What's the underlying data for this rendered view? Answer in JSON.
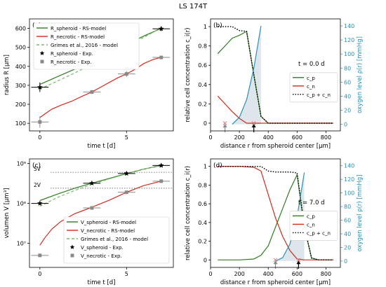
{
  "figure": {
    "title": "LS 174T"
  },
  "colors": {
    "green": "#2f7d1e",
    "green_dash": "#7ab86a",
    "red": "#d42a1a",
    "black": "#000000",
    "gray": "#8a8a8a",
    "teal": "#2a8fb5",
    "fill": "#cfdde3",
    "teal_axis": "#2a8fb5",
    "cross": "#d77a7a"
  },
  "chart_data": [
    {
      "panel": "(a)",
      "type": "line",
      "xlabel": "time t [d]",
      "ylabel": "radius R [μm]",
      "xlim": [
        -0.6,
        7.7
      ],
      "ylim": [
        60,
        650
      ],
      "xticks": [
        0,
        5
      ],
      "yticks": [
        100,
        200,
        300,
        400,
        500,
        600
      ],
      "legend": {
        "position": "top-left",
        "entries": [
          "R_spheroid - RS-model",
          "R_necrotic - RS-model",
          "Grimes et al., 2016 - model",
          "R_spheroid - Exp.",
          "R_necrotic - Exp."
        ]
      },
      "series": [
        {
          "name": "R_spheroid - RS-model",
          "color": "green",
          "style": "solid",
          "x": [
            0,
            1,
            2,
            3,
            4,
            5,
            6,
            7
          ],
          "y": [
            305,
            345,
            385,
            425,
            470,
            515,
            560,
            600
          ]
        },
        {
          "name": "R_necrotic - RS-model",
          "color": "red",
          "style": "solid",
          "x": [
            0,
            0.3,
            0.7,
            1.2,
            1.8,
            2.5,
            3,
            3.5,
            4,
            4.5,
            5,
            5.5,
            6,
            6.5,
            7
          ],
          "y": [
            130,
            150,
            175,
            195,
            215,
            245,
            265,
            290,
            315,
            340,
            360,
            385,
            415,
            435,
            448
          ]
        },
        {
          "name": "Grimes et al., 2016 - model",
          "color": "green_dash",
          "style": "dashed",
          "x": [
            0,
            1,
            2,
            3,
            4,
            5,
            6,
            7
          ],
          "y": [
            280,
            322,
            365,
            410,
            458,
            505,
            553,
            602
          ]
        }
      ],
      "points": [
        {
          "name": "R_spheroid - Exp.",
          "marker": "star",
          "color": "black",
          "x": [
            0,
            3,
            5,
            7
          ],
          "y": [
            290,
            425,
            515,
            598
          ],
          "xerr": [
            0.5,
            0.5,
            0.5,
            0.5
          ],
          "yerr": [
            25,
            10,
            15,
            12
          ]
        },
        {
          "name": "R_necrotic - Exp.",
          "marker": "square",
          "color": "gray",
          "x": [
            0,
            3,
            5,
            7
          ],
          "y": [
            107,
            265,
            360,
            447
          ],
          "xerr": [
            0.5,
            0.5,
            0.5,
            0.5
          ],
          "yerr": [
            30,
            10,
            15,
            8
          ]
        }
      ]
    },
    {
      "panel": "(b)",
      "type": "line",
      "xlabel": "distance r from spheroid center [μm]",
      "ylabel": "relative cell concentration c_i(r)",
      "y2label": "oxygen level ρ(r) [mmHg]",
      "xlim": [
        0,
        900
      ],
      "ylim": [
        -0.08,
        1.08
      ],
      "y2lim": [
        -9.3333,
        150
      ],
      "xticks": [
        0,
        200,
        400,
        600,
        800
      ],
      "yticks": [
        0.0,
        0.2,
        0.4,
        0.6,
        0.8,
        1.0
      ],
      "y2ticks": [
        0,
        20,
        40,
        60,
        80,
        100,
        120,
        140
      ],
      "annotation": "t = 0.0 d",
      "legend": {
        "position": "center-right",
        "entries": [
          "c_p",
          "c_n",
          "c_p + c_n"
        ]
      },
      "series": [
        {
          "name": "c_p",
          "color": "green",
          "style": "solid",
          "x": [
            50,
            100,
            150,
            200,
            250,
            300,
            350,
            400,
            450,
            850
          ],
          "y": [
            0.72,
            0.8,
            0.88,
            0.91,
            0.95,
            0.5,
            0.07,
            0,
            0,
            0
          ]
        },
        {
          "name": "c_n",
          "color": "red",
          "style": "solid",
          "x": [
            50,
            100,
            150,
            200,
            250,
            850
          ],
          "y": [
            0.28,
            0.2,
            0.12,
            0.05,
            0,
            0
          ]
        },
        {
          "name": "c_p + c_n",
          "color": "black",
          "style": "dotted",
          "x": [
            50,
            100,
            150,
            200,
            250,
            300,
            350,
            400,
            450,
            850
          ],
          "y": [
            1.0,
            1.0,
            1.0,
            0.96,
            0.95,
            0.5,
            0.07,
            0,
            0,
            0
          ]
        },
        {
          "name": "oxygen",
          "color": "teal",
          "style": "solid",
          "axis": "right",
          "x": [
            150,
            200,
            250,
            300,
            350
          ],
          "y": [
            0,
            10,
            35,
            80,
            140
          ]
        }
      ],
      "arrows": [
        {
          "x": 100,
          "color": "gray",
          "marker": "x"
        },
        {
          "x": 300,
          "color": "black",
          "marker": "x"
        }
      ]
    },
    {
      "panel": "(c)",
      "type": "line",
      "xlabel": "time t [d]",
      "ylabel": "volumen V [μm³]",
      "xscale": "linear",
      "yscale": "log",
      "xlim": [
        -0.6,
        7.7
      ],
      "ylim": [
        2500000.0,
        1300000000.0
      ],
      "xticks": [
        0,
        5
      ],
      "yticks": [
        10000000.0,
        100000000.0,
        1000000000.0
      ],
      "yticklabels": [
        "10⁷",
        "10⁸",
        "10⁹"
      ],
      "hlines": [
        {
          "label": "5V_{t=0}",
          "y": 600000000.0
        },
        {
          "label": "2V_{t=0}",
          "y": 240000000.0
        }
      ],
      "legend": {
        "position": "bottom-right",
        "entries": [
          "V_spheroid - RS-model",
          "V_necrotic - RS-model",
          "Grimes et al., 2016 - model",
          "V_spheroid - Exp.",
          "V_necrotic - Exp."
        ]
      },
      "series": [
        {
          "name": "V_spheroid - RS-model",
          "color": "green",
          "style": "solid",
          "x": [
            0,
            1,
            2,
            3,
            4,
            5,
            6,
            7
          ],
          "y": [
            118000000.0,
            170000000.0,
            240000000.0,
            320000000.0,
            420000000.0,
            560000000.0,
            720000000.0,
            890000000.0
          ]
        },
        {
          "name": "V_necrotic - RS-model",
          "color": "red",
          "style": "solid",
          "x": [
            0,
            0.3,
            0.7,
            1.2,
            2,
            3,
            4,
            5,
            6,
            7
          ],
          "y": [
            9000000.0,
            14000000.0,
            23000000.0,
            35000000.0,
            55000000.0,
            80000000.0,
            120000000.0,
            190000000.0,
            280000000.0,
            360000000.0
          ]
        },
        {
          "name": "Grimes et al., 2016 - model",
          "color": "green_dash",
          "style": "dashed",
          "x": [
            0,
            1,
            2,
            3,
            4,
            5,
            6,
            7
          ],
          "y": [
            85000000.0,
            140000000.0,
            210000000.0,
            300000000.0,
            410000000.0,
            550000000.0,
            720000000.0,
            900000000.0
          ]
        }
      ],
      "points": [
        {
          "name": "V_spheroid - Exp.",
          "marker": "star",
          "color": "black",
          "x": [
            0,
            3,
            5,
            7
          ],
          "y": [
            100000000.0,
            320000000.0,
            560000000.0,
            890000000.0
          ],
          "xerr": [
            0.5,
            0.5,
            0.5,
            0.5
          ]
        },
        {
          "name": "V_necrotic - Exp.",
          "marker": "square",
          "color": "gray",
          "x": [
            0,
            3,
            5,
            7
          ],
          "y": [
            5000000.0,
            77000000.0,
            190000000.0,
            360000000.0
          ],
          "xerr": [
            0.5,
            0.5,
            0.5,
            0.5
          ]
        }
      ]
    },
    {
      "panel": "(d)",
      "type": "line",
      "xlabel": "distance r from spheroid center [μm]",
      "ylabel": "relative cell concentration c_i(r)",
      "y2label": "oxygen level ρ(r) [mmHg]",
      "xlim": [
        0,
        900
      ],
      "ylim": [
        -0.08,
        1.08
      ],
      "y2lim": [
        -9.3333,
        150
      ],
      "xticks": [
        0,
        200,
        400,
        600,
        800
      ],
      "yticks": [
        0.0,
        0.2,
        0.4,
        0.6,
        0.8,
        1.0
      ],
      "y2ticks": [
        0,
        20,
        40,
        60,
        80,
        100,
        120,
        140
      ],
      "annotation": "t = 7.0 d",
      "legend": {
        "position": "center-right",
        "entries": [
          "c_p",
          "c_n",
          "c_p + c_n"
        ]
      },
      "series": [
        {
          "name": "c_p",
          "color": "green",
          "style": "solid",
          "x": [
            50,
            100,
            200,
            300,
            350,
            400,
            450,
            500,
            550,
            600,
            650,
            700,
            750,
            850
          ],
          "y": [
            0,
            0,
            0,
            0.01,
            0.05,
            0.15,
            0.35,
            0.55,
            0.75,
            0.91,
            0.35,
            0.02,
            0,
            0
          ]
        },
        {
          "name": "c_n",
          "color": "red",
          "style": "solid",
          "x": [
            50,
            100,
            200,
            300,
            350,
            400,
            450,
            500,
            550,
            600,
            650,
            850
          ],
          "y": [
            1.0,
            1.0,
            1.0,
            0.99,
            0.95,
            0.7,
            0.45,
            0.25,
            0.1,
            0.01,
            0,
            0
          ]
        },
        {
          "name": "c_p + c_n",
          "color": "black",
          "style": "dotted",
          "x": [
            50,
            100,
            200,
            300,
            350,
            400,
            450,
            500,
            550,
            600,
            650,
            700,
            750,
            850
          ],
          "y": [
            1.0,
            1.0,
            1.0,
            1.0,
            1.0,
            0.95,
            0.94,
            0.94,
            0.94,
            0.93,
            0.36,
            0.02,
            0,
            0
          ]
        },
        {
          "name": "oxygen",
          "color": "teal",
          "style": "solid",
          "axis": "right",
          "x": [
            450,
            500,
            550,
            600,
            650
          ],
          "y": [
            0,
            5,
            25,
            65,
            130
          ]
        }
      ],
      "arrows": [
        {
          "x": 450,
          "color": "gray",
          "marker": "x"
        },
        {
          "x": 610,
          "color": "black",
          "marker": "x"
        }
      ]
    }
  ]
}
